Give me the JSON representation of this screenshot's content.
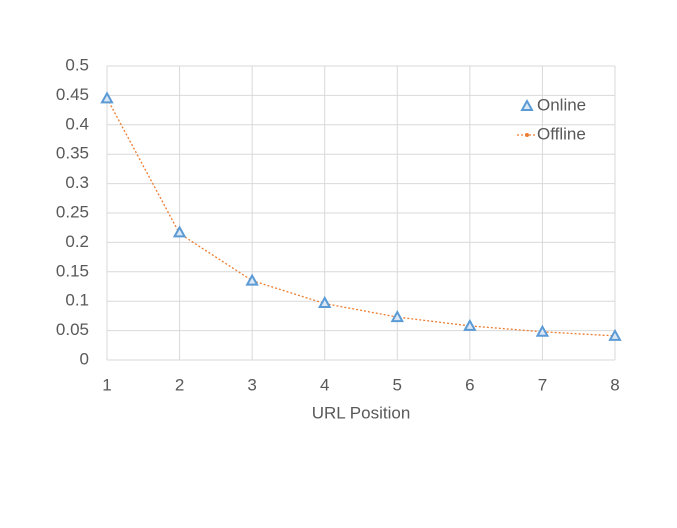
{
  "chart_data": {
    "type": "line",
    "x_label": "URL Position",
    "x": [
      1,
      2,
      3,
      4,
      5,
      6,
      7,
      8
    ],
    "series": [
      {
        "name": "Online",
        "color": "#5b9bd5",
        "marker": "triangle",
        "line": false,
        "values": [
          0.445,
          0.217,
          0.135,
          0.097,
          0.073,
          0.058,
          0.048,
          0.041
        ]
      },
      {
        "name": "Offline",
        "color": "#ed7d31",
        "marker": "circle",
        "line": "dotted",
        "values": [
          0.445,
          0.215,
          0.135,
          0.096,
          0.073,
          0.058,
          0.048,
          0.041
        ]
      }
    ],
    "xlim": [
      1,
      8
    ],
    "xticks": [
      1,
      2,
      3,
      4,
      5,
      6,
      7,
      8
    ],
    "ylim": [
      0,
      0.5
    ],
    "yticks": [
      0,
      0.05,
      0.1,
      0.15,
      0.2,
      0.25,
      0.3,
      0.35,
      0.4,
      0.45,
      0.5
    ],
    "grid": true,
    "legend": "upper right"
  }
}
